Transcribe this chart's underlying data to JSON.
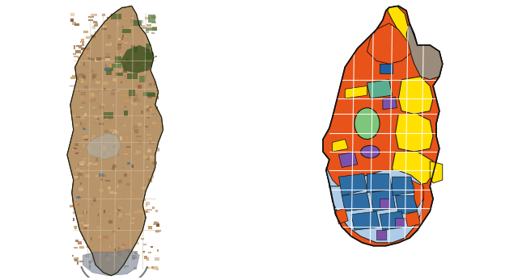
{
  "figure_width": 6.4,
  "figure_height": 3.47,
  "background_color": "#ffffff",
  "colors": {
    "orange_red": "#E8531A",
    "yellow": "#FFE000",
    "dark_blue": "#2E6DA4",
    "light_blue": "#AECCE8",
    "green": "#7DC67A",
    "teal_green": "#5BAD8F",
    "purple": "#7B52AB",
    "gray_brown": "#9B8B7A",
    "dark_outline": "#111111",
    "white_road": "#ffffff",
    "blue_small": "#1E5FA0",
    "sat_light": "#C8A882",
    "sat_med": "#B08060",
    "sat_dark": "#6A5040",
    "sat_green": "#4A6030",
    "sat_road": "#D0B890"
  }
}
